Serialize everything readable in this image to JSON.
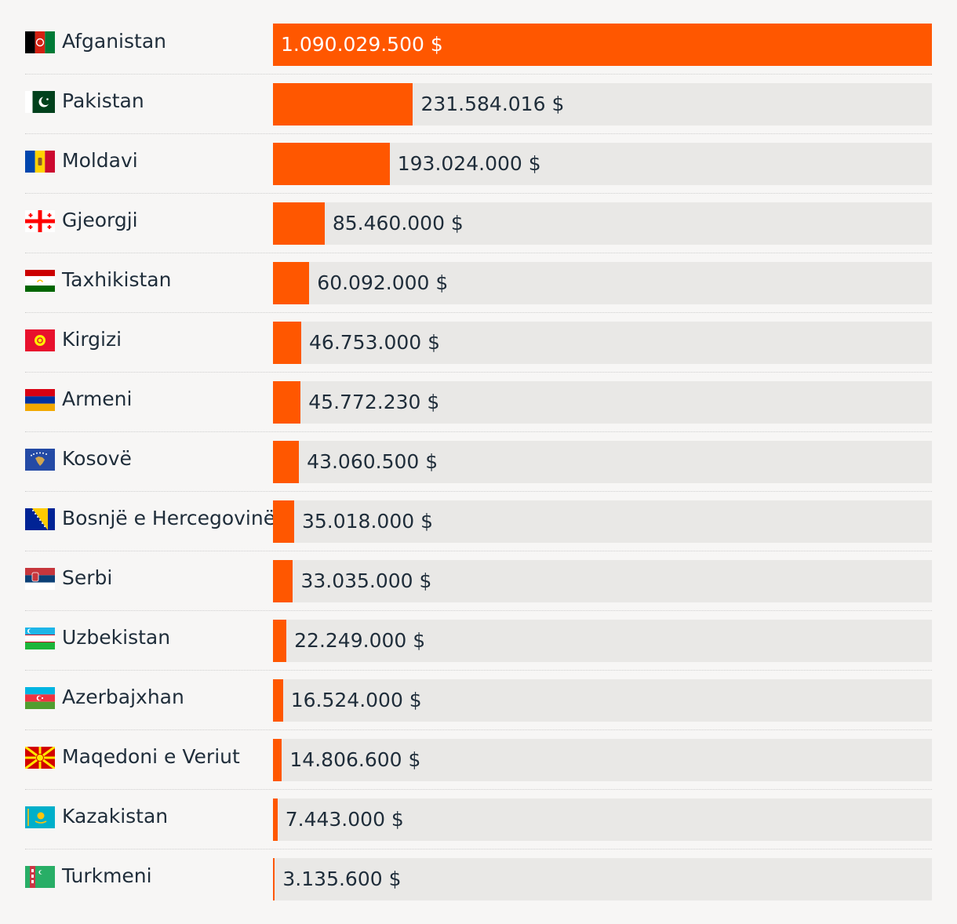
{
  "chart_data": {
    "type": "bar",
    "orientation": "horizontal",
    "xlim": [
      0,
      1090029500
    ],
    "colors": {
      "bar": "#ff5700",
      "track": "#e9e8e6",
      "background": "#f7f6f5"
    },
    "rows": [
      {
        "label": "Afganistan",
        "value": 1090029500,
        "value_label": "1.090.029.500 $",
        "flag": "afghanistan-flag"
      },
      {
        "label": "Pakistan",
        "value": 231584016,
        "value_label": "231.584.016 $",
        "flag": "pakistan-flag"
      },
      {
        "label": "Moldavi",
        "value": 193024000,
        "value_label": "193.024.000 $",
        "flag": "moldova-flag"
      },
      {
        "label": "Gjeorgji",
        "value": 85460000,
        "value_label": "85.460.000 $",
        "flag": "georgia-flag"
      },
      {
        "label": "Taxhikistan",
        "value": 60092000,
        "value_label": "60.092.000 $",
        "flag": "tajikistan-flag"
      },
      {
        "label": "Kirgizi",
        "value": 46753000,
        "value_label": "46.753.000 $",
        "flag": "kyrgyzstan-flag"
      },
      {
        "label": "Armeni",
        "value": 45772230,
        "value_label": "45.772.230 $",
        "flag": "armenia-flag"
      },
      {
        "label": "Kosovë",
        "value": 43060500,
        "value_label": "43.060.500 $",
        "flag": "kosovo-flag"
      },
      {
        "label": "Bosnjë e Hercegovinë",
        "value": 35018000,
        "value_label": "35.018.000 $",
        "flag": "bosnia-flag"
      },
      {
        "label": "Serbi",
        "value": 33035000,
        "value_label": "33.035.000 $",
        "flag": "serbia-flag"
      },
      {
        "label": "Uzbekistan",
        "value": 22249000,
        "value_label": "22.249.000 $",
        "flag": "uzbekistan-flag"
      },
      {
        "label": "Azerbajxhan",
        "value": 16524000,
        "value_label": "16.524.000 $",
        "flag": "azerbaijan-flag"
      },
      {
        "label": "Maqedoni e Veriut",
        "value": 14806600,
        "value_label": "14.806.600 $",
        "flag": "north-macedonia-flag"
      },
      {
        "label": "Kazakistan",
        "value": 7443000,
        "value_label": "7.443.000 $",
        "flag": "kazakhstan-flag"
      },
      {
        "label": "Turkmeni",
        "value": 3135600,
        "value_label": "3.135.600 $",
        "flag": "turkmenistan-flag"
      }
    ]
  }
}
